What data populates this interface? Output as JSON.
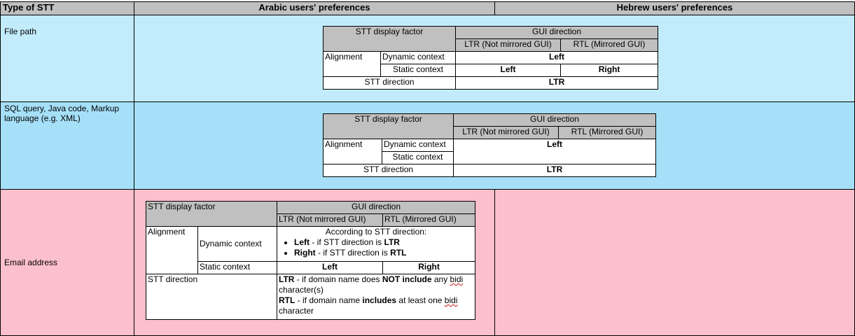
{
  "header": {
    "col1": "Type of STT",
    "col2": "Arabic users' preferences",
    "col3": "Hebrew users' preferences"
  },
  "colors": {
    "header": "#c0c0c0",
    "row_file": "#c2ecfc",
    "row_sql": "#a6e0f8",
    "row_email": "#fcc0cc"
  },
  "rows": [
    {
      "type": "File path",
      "table": {
        "factor": "STT display factor",
        "gui": "GUI direction",
        "ltr": "LTR (Not mirrored GUI)",
        "rtl": "RTL (Mirrored GUI)",
        "alignment": "Alignment",
        "dynamic": "Dynamic context",
        "dynamic_value": "Left",
        "static": "Static context",
        "static_ltr": "Left",
        "static_rtl": "Right",
        "direction": "STT direction",
        "direction_value": "LTR"
      }
    },
    {
      "type": "SQL query, Java code, Markup language (e.g. XML)",
      "table": {
        "factor": "STT display factor",
        "gui": "GUI direction",
        "ltr": "LTR (Not mirrored GUI)",
        "rtl": "RTL (Mirrored GUI)",
        "alignment": "Alignment",
        "dynamic": "Dynamic context",
        "static": "Static context",
        "align_value": "Left",
        "direction": "STT direction",
        "direction_value": "LTR"
      }
    },
    {
      "type": "Email address",
      "table": {
        "factor": "STT display factor",
        "gui": "GUI direction",
        "ltr": "LTR (Not mirrored GUI)",
        "rtl": "RTL (Mirrored GUI)",
        "alignment": "Alignment",
        "dynamic": "Dynamic context",
        "dyn_intro": "According to STT direction:",
        "b1_bold": "Left",
        "b1_text": " - if STT direction is ",
        "b1_end": "LTR",
        "b2_bold": "Right",
        "b2_text": " - if STT direction is ",
        "b2_end": "RTL",
        "static": "Static context",
        "static_ltr": "Left",
        "static_rtl": "Right",
        "direction": "STT direction",
        "d1_bold": "LTR",
        "d1_text": " - if domain name does ",
        "d1_bold2": "NOT include",
        "d1_text2": " any ",
        "d1_sq": "bidi",
        "d1_text3": " character(s)",
        "d2_bold": "RTL",
        "d2_text": " - if domain name ",
        "d2_bold2": "includes",
        "d2_text2": " at least one ",
        "d2_sq": "bidi",
        "d2_text3": " character"
      }
    }
  ]
}
